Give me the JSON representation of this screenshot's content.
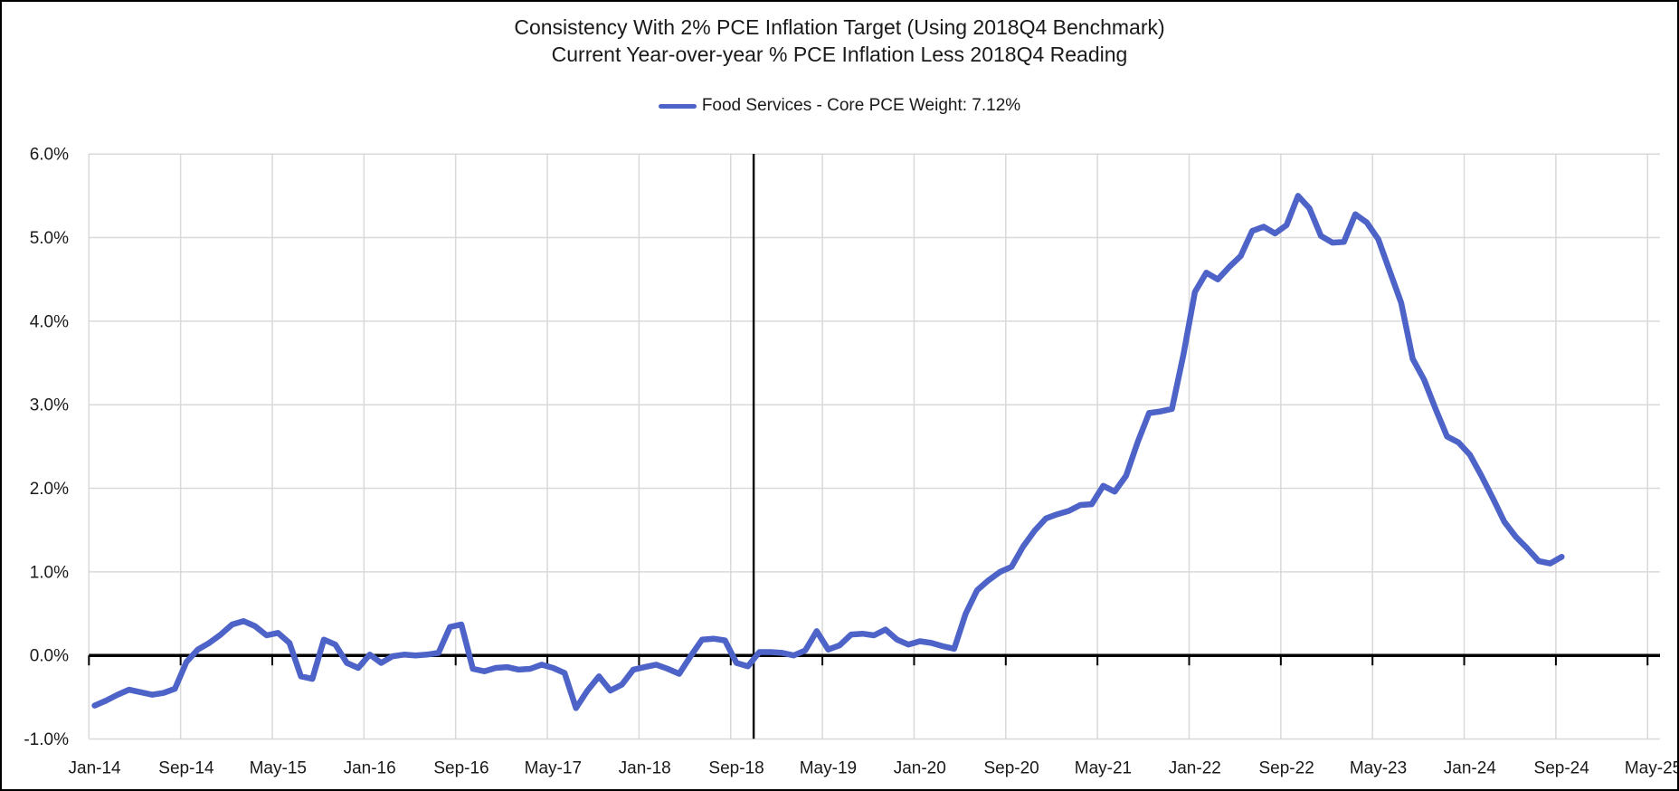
{
  "chart_data": {
    "type": "line",
    "title": "Consistency With 2% PCE Inflation Target (Using 2018Q4 Benchmark)",
    "subtitle": "Current Year-over-year % PCE Inflation Less 2018Q4 Reading",
    "legend_label": "Food Services - Core PCE Weight: 7.12%",
    "legend_position": "top",
    "grid": true,
    "unit": "%",
    "ylim": [
      -1,
      6
    ],
    "y_tick_values": [
      6,
      5,
      4,
      3,
      2,
      1,
      0,
      -1
    ],
    "y_tick_labels": [
      "6.0%",
      "5.0%",
      "4.0%",
      "3.0%",
      "2.0%",
      "1.0%",
      "0.0%",
      "-1.0%"
    ],
    "x_tick_labels": [
      "Jan-14",
      "Sep-14",
      "May-15",
      "Jan-16",
      "Sep-16",
      "May-17",
      "Jan-18",
      "Sep-18",
      "May-19",
      "Jan-20",
      "Sep-20",
      "May-21",
      "Jan-22",
      "Sep-22",
      "May-23",
      "Jan-24",
      "Sep-24",
      "May-25"
    ],
    "x_axis_start": "Jan-2014",
    "x_axis_end": "May-2025",
    "zero_line": true,
    "benchmark_line": {
      "label": "2018Q4 benchmark",
      "month": "Nov-2018",
      "month_index": 58
    },
    "series": [
      {
        "name": "Food Services - Core PCE Weight: 7.12%",
        "start_month": "2014-01",
        "end_month": "2024-09",
        "frequency": "monthly",
        "values": [
          -0.6,
          -0.54,
          -0.47,
          -0.41,
          -0.44,
          -0.47,
          -0.45,
          -0.4,
          -0.08,
          0.07,
          0.15,
          0.25,
          0.37,
          0.41,
          0.35,
          0.24,
          0.27,
          0.15,
          -0.25,
          -0.28,
          0.19,
          0.13,
          -0.09,
          -0.15,
          0.01,
          -0.09,
          -0.01,
          0.01,
          0.0,
          0.01,
          0.03,
          0.34,
          0.37,
          -0.16,
          -0.19,
          -0.15,
          -0.14,
          -0.17,
          -0.16,
          -0.11,
          -0.15,
          -0.21,
          -0.63,
          -0.42,
          -0.25,
          -0.42,
          -0.35,
          -0.17,
          -0.14,
          -0.11,
          -0.16,
          -0.22,
          -0.01,
          0.19,
          0.2,
          0.18,
          -0.09,
          -0.13,
          0.04,
          0.04,
          0.03,
          0.0,
          0.06,
          0.29,
          0.07,
          0.12,
          0.25,
          0.26,
          0.24,
          0.31,
          0.19,
          0.13,
          0.17,
          0.15,
          0.11,
          0.08,
          0.5,
          0.78,
          0.9,
          1.0,
          1.06,
          1.3,
          1.49,
          1.64,
          1.69,
          1.73,
          1.8,
          1.81,
          2.03,
          1.96,
          2.15,
          2.55,
          2.9,
          2.92,
          2.95,
          3.6,
          4.35,
          4.58,
          4.5,
          4.65,
          4.78,
          5.08,
          5.13,
          5.05,
          5.15,
          5.5,
          5.35,
          5.02,
          4.94,
          4.95,
          5.28,
          5.18,
          4.98,
          4.6,
          4.22,
          3.55,
          3.3,
          2.95,
          2.62,
          2.55,
          2.4,
          2.15,
          1.88,
          1.6,
          1.42,
          1.28,
          1.13,
          1.1,
          1.18
        ]
      }
    ]
  },
  "colors": {
    "series": "#4D63C8",
    "gridline": "#D9D9D9",
    "axis": "#000000",
    "text": "#1A1A1A",
    "background": "#FFFFFF",
    "border": "#000000"
  }
}
